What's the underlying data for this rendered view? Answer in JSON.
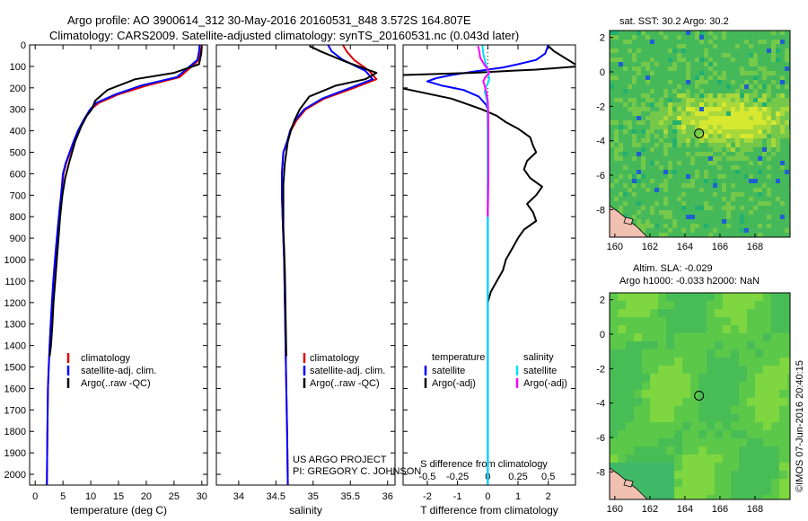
{
  "header": {
    "title_line1": "Argo profile: AO 3900614_312 30-May-2016 20160531_848 3.572S 164.807E",
    "title_line2": "Climatology: CARS2009. Satellite-adjusted climatology: synTS_20160531.nc (0.043d later)"
  },
  "colors": {
    "climatology": "#e00000",
    "satellite": "#0000ff",
    "argo": "#000000",
    "satellite_salinity": "#00e0ff",
    "argo_salinity": "#ff00ff"
  },
  "depth_axis": {
    "ticks": [
      0,
      100,
      200,
      300,
      400,
      500,
      600,
      700,
      800,
      900,
      1000,
      1100,
      1200,
      1300,
      1400,
      1500,
      1600,
      1700,
      1800,
      1900,
      2000
    ],
    "range": [
      0,
      2050
    ]
  },
  "chart_data": [
    {
      "type": "line",
      "id": "temperature",
      "xlabel": "temperature (deg C)",
      "xlim": [
        -1,
        31
      ],
      "xticks": [
        0,
        5,
        10,
        15,
        20,
        25,
        30
      ],
      "ylim": [
        0,
        2050
      ],
      "legend": {
        "position": "bottom-left",
        "entries": [
          "climatology",
          "satellite-adj. clim.",
          "Argo(..raw -QC)"
        ]
      },
      "series": [
        {
          "name": "climatology",
          "color": "#e00000",
          "x": [
            30.0,
            29.8,
            29.5,
            26,
            20,
            15,
            11.5,
            10,
            8.8,
            7.8,
            7,
            6.3,
            5.6,
            5.1,
            4.7,
            4.3,
            3.95,
            3.6,
            3.3,
            3.05,
            2.8,
            2.6,
            2.45,
            2.3,
            2.2,
            2.1
          ],
          "y": [
            0,
            30,
            70,
            150,
            190,
            230,
            270,
            300,
            350,
            400,
            450,
            500,
            550,
            600,
            700,
            800,
            900,
            1000,
            1100,
            1200,
            1300,
            1400,
            1500,
            1600,
            1800,
            2050
          ]
        },
        {
          "name": "satellite-adj. clim.",
          "color": "#0000ff",
          "x": [
            29.6,
            29.5,
            29.2,
            25.5,
            19,
            14.5,
            11,
            9.9,
            8.7,
            7.7,
            6.9,
            6.2,
            5.5,
            5.0,
            4.65,
            4.25,
            3.9,
            3.55,
            3.25,
            3.0,
            2.8,
            2.6,
            2.45,
            2.3,
            2.2,
            2.1
          ],
          "y": [
            0,
            30,
            70,
            150,
            190,
            230,
            270,
            300,
            350,
            400,
            450,
            500,
            550,
            600,
            700,
            800,
            900,
            1000,
            1100,
            1200,
            1300,
            1400,
            1500,
            1600,
            1800,
            2050
          ]
        },
        {
          "name": "Argo(..raw -QC)",
          "color": "#000000",
          "x": [
            30.0,
            29.9,
            29.5,
            25,
            18,
            13,
            10.8,
            10.2,
            9.3,
            8.3,
            7.2,
            6.1,
            5.4,
            4.9,
            4.5,
            4.2,
            3.9,
            3.6,
            3.3,
            3.1,
            2.85,
            2.6
          ],
          "y": [
            5,
            40,
            90,
            130,
            160,
            210,
            260,
            300,
            330,
            380,
            450,
            550,
            620,
            700,
            800,
            900,
            1000,
            1100,
            1200,
            1300,
            1400,
            1450
          ]
        }
      ]
    },
    {
      "type": "line",
      "id": "salinity",
      "xlabel": "salinity",
      "xlim": [
        33.7,
        36.1
      ],
      "xticks": [
        34,
        34.5,
        35,
        35.5,
        36
      ],
      "ylim": [
        0,
        2050
      ],
      "legend": {
        "position": "bottom-left",
        "entries": [
          "climatology",
          "satellite-adj. clim.",
          "Argo(..raw -QC)"
        ]
      },
      "series": [
        {
          "name": "climatology",
          "color": "#e00000",
          "x": [
            35.4,
            35.45,
            35.55,
            35.75,
            35.85,
            35.55,
            35.15,
            34.9,
            34.78,
            34.7,
            34.66,
            34.6,
            34.58,
            34.58,
            34.59,
            34.6,
            34.61,
            34.62,
            34.63,
            34.64,
            34.65,
            34.66
          ],
          "y": [
            0,
            30,
            70,
            120,
            160,
            200,
            250,
            300,
            350,
            400,
            450,
            500,
            600,
            700,
            800,
            900,
            1000,
            1200,
            1400,
            1600,
            1800,
            2050
          ]
        },
        {
          "name": "satellite-adj. clim.",
          "color": "#0000ff",
          "x": [
            35.2,
            35.25,
            35.4,
            35.7,
            35.8,
            35.5,
            35.12,
            34.88,
            34.76,
            34.69,
            34.65,
            34.6,
            34.58,
            34.58,
            34.59,
            34.6,
            34.61,
            34.62,
            34.63,
            34.64,
            34.65,
            34.66
          ],
          "y": [
            0,
            30,
            70,
            120,
            160,
            200,
            250,
            300,
            350,
            400,
            450,
            500,
            600,
            700,
            800,
            900,
            1000,
            1200,
            1400,
            1600,
            1800,
            2050
          ]
        },
        {
          "name": "Argo(..raw -QC)",
          "color": "#000000",
          "x": [
            34.95,
            35.1,
            35.45,
            35.85,
            35.7,
            35.3,
            34.95,
            34.82,
            34.75,
            34.7,
            34.66,
            34.62,
            34.6,
            34.6,
            34.6,
            34.61,
            34.62,
            34.63,
            34.64
          ],
          "y": [
            5,
            30,
            80,
            130,
            160,
            190,
            240,
            300,
            350,
            400,
            450,
            550,
            650,
            750,
            850,
            950,
            1050,
            1250,
            1450
          ]
        }
      ]
    },
    {
      "type": "line",
      "id": "difference",
      "xlabel": "T difference from climatology",
      "xlabel_top": "S difference from climatology",
      "xlim": [
        -2.8,
        2.9
      ],
      "xticks": [
        -2,
        -1,
        0,
        1,
        2
      ],
      "xticks_salinity": [
        -0.5,
        -0.25,
        0,
        0.25,
        0.5
      ],
      "ylim": [
        0,
        2050
      ],
      "legend": {
        "position": "top",
        "headers": [
          "temperature",
          "salinity"
        ],
        "entries": [
          "satellite",
          "Argo(-adj)",
          "satellite",
          "Argo(-adj)"
        ]
      },
      "series": [
        {
          "name": "satellite",
          "quantity": "temperature",
          "color": "#0000ff",
          "x": [
            2.0,
            1.9,
            1.6,
            1.0,
            0.5,
            -0.5,
            -1.2,
            -1.7,
            -2.0,
            -1.5,
            -0.8,
            -0.3,
            -0.05,
            0,
            0,
            0,
            0,
            0,
            0
          ],
          "y": [
            0,
            40,
            70,
            90,
            105,
            125,
            140,
            155,
            170,
            190,
            210,
            240,
            280,
            300,
            400,
            600,
            1000,
            1500,
            2050
          ]
        },
        {
          "name": "Argo(-adj)",
          "quantity": "temperature",
          "color": "#000000",
          "x": [
            2.0,
            2.2,
            3.0,
            1.6,
            0.8,
            -0.5,
            -2.8,
            -2.9,
            -1.2,
            -0.2,
            0.3,
            0.6,
            1.0,
            1.4,
            1.5,
            1.6,
            1.3,
            1.2,
            1.4,
            1.8,
            1.6,
            1.3,
            1.5,
            1.6,
            1.2,
            1.0,
            0.8,
            0.6,
            0.5,
            0.3,
            0.1,
            0
          ],
          "y": [
            5,
            30,
            100,
            115,
            120,
            130,
            140,
            200,
            250,
            300,
            330,
            360,
            390,
            430,
            470,
            500,
            540,
            580,
            620,
            660,
            700,
            740,
            780,
            820,
            860,
            900,
            950,
            1000,
            1050,
            1100,
            1150,
            1200
          ]
        },
        {
          "name": "satellite",
          "quantity": "salinity",
          "color": "#00e0ff",
          "x": [
            -0.18,
            -0.15,
            -0.08,
            -0.02,
            0.03,
            0.05,
            0.0,
            -0.08,
            -0.1,
            -0.04,
            0.0,
            0.0,
            0.0,
            0.0,
            0.0
          ],
          "y": [
            0,
            40,
            80,
            110,
            140,
            160,
            180,
            200,
            220,
            250,
            300,
            500,
            1000,
            1500,
            2050
          ]
        },
        {
          "name": "Argo(-adj)",
          "quantity": "salinity",
          "color": "#ff00ff",
          "x": [
            -0.32,
            -0.28,
            -0.25,
            -0.12,
            -0.02,
            0.05,
            -0.08,
            -0.15,
            -0.1,
            -0.05,
            0.0,
            0.01,
            0.02,
            0.02,
            0.02,
            0.01,
            0.0
          ],
          "y": [
            5,
            30,
            60,
            90,
            110,
            130,
            150,
            170,
            190,
            220,
            260,
            300,
            400,
            500,
            600,
            700,
            800
          ]
        }
      ]
    },
    {
      "type": "heatmap",
      "id": "sst_map",
      "title": "sat. SST: 30.2 Argo: 30.2",
      "xlim": [
        159.7,
        170.0
      ],
      "ylim": [
        -9.6,
        2.4
      ],
      "xticks": [
        160,
        162,
        164,
        166,
        168
      ],
      "yticks": [
        2,
        0,
        -2,
        -4,
        -6,
        -8
      ],
      "marker": {
        "lon": 164.807,
        "lat": -3.572
      }
    },
    {
      "type": "heatmap",
      "id": "sla_map",
      "title_line1": "Altim. SLA: -0.029",
      "title_line2": "Argo h1000: -0.033 h2000: NaN",
      "xlim": [
        159.7,
        170.0
      ],
      "ylim": [
        -9.6,
        2.4
      ],
      "xticks": [
        160,
        162,
        164,
        166,
        168
      ],
      "yticks": [
        2,
        0,
        -2,
        -4,
        -6,
        -8
      ],
      "marker": {
        "lon": 164.807,
        "lat": -3.572
      }
    }
  ],
  "credits": {
    "project_line1": "US ARGO PROJECT",
    "project_line2": "PI: GREGORY C. JOHNSON",
    "imos": "©IMOS 07-Jun-2016 20:40:15"
  }
}
